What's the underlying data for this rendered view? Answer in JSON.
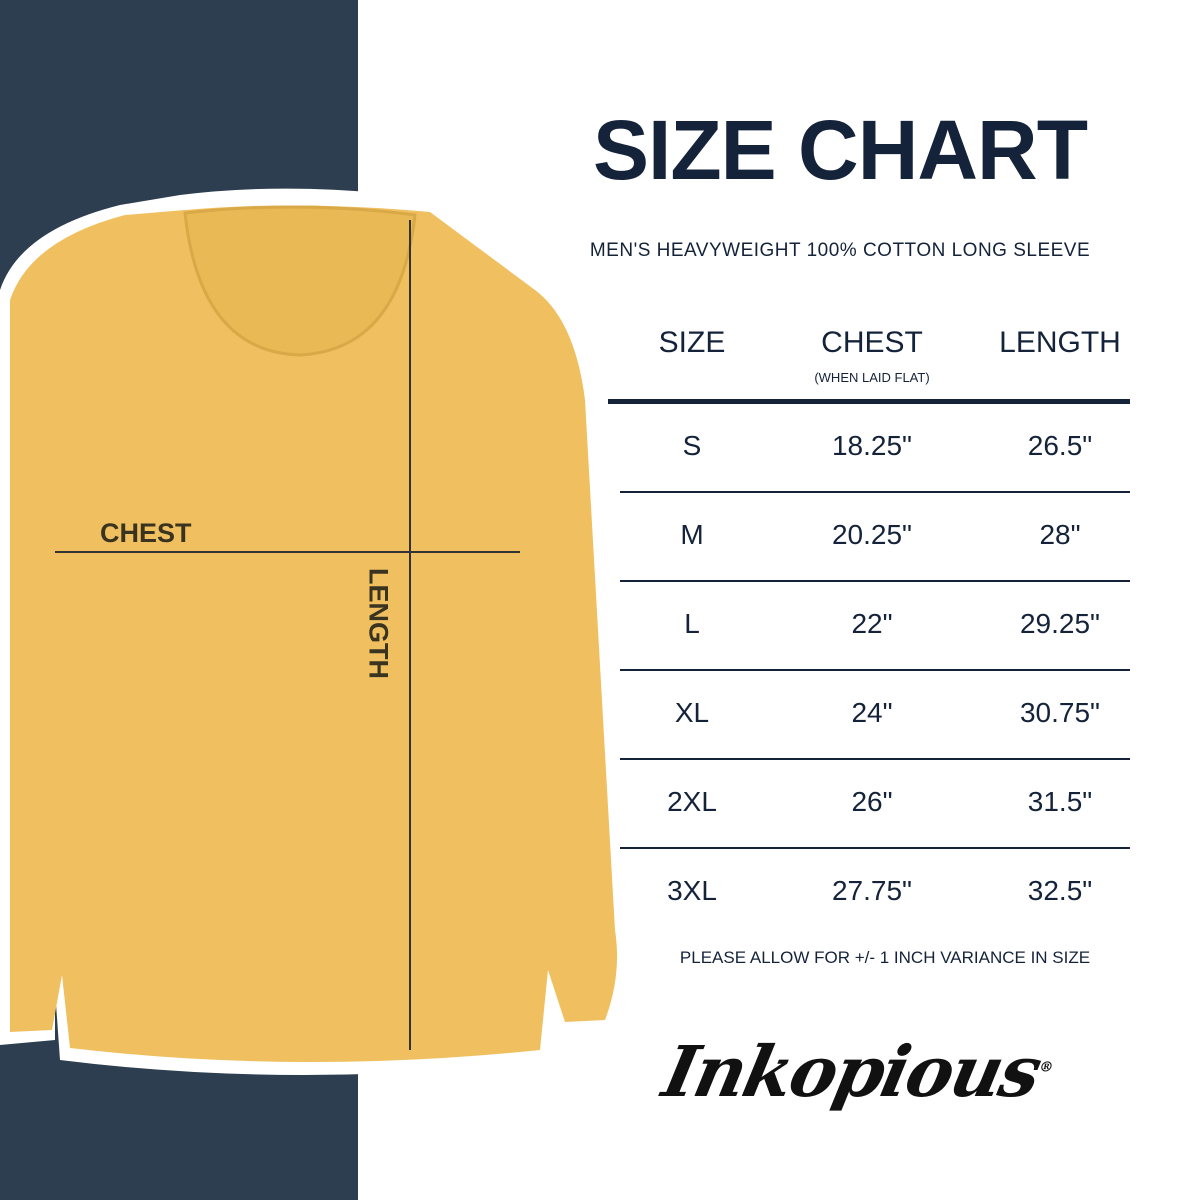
{
  "title": "SIZE CHART",
  "subtitle": "MEN'S HEAVYWEIGHT 100% COTTON LONG SLEEVE",
  "table": {
    "headers": {
      "size": "SIZE",
      "chest": "CHEST",
      "chest_note": "(WHEN LAID FLAT)",
      "length": "LENGTH"
    },
    "rows": [
      {
        "size": "S",
        "chest": "18.25\"",
        "length": "26.5\""
      },
      {
        "size": "M",
        "chest": "20.25\"",
        "length": "28\""
      },
      {
        "size": "L",
        "chest": "22\"",
        "length": "29.25\""
      },
      {
        "size": "XL",
        "chest": "24\"",
        "length": "30.75\""
      },
      {
        "size": "2XL",
        "chest": "26\"",
        "length": "31.5\""
      },
      {
        "size": "3XL",
        "chest": "27.75\"",
        "length": "32.5\""
      }
    ]
  },
  "note": "PLEASE ALLOW FOR +/- 1 INCH VARIANCE IN SIZE",
  "diagram": {
    "chest_label": "CHEST",
    "length_label": "LENGTH"
  },
  "brand": {
    "logo_text": "Inkopious"
  },
  "colors": {
    "navy": "#2c3e50",
    "shirt": "#f0c060",
    "text": "#14233a"
  }
}
